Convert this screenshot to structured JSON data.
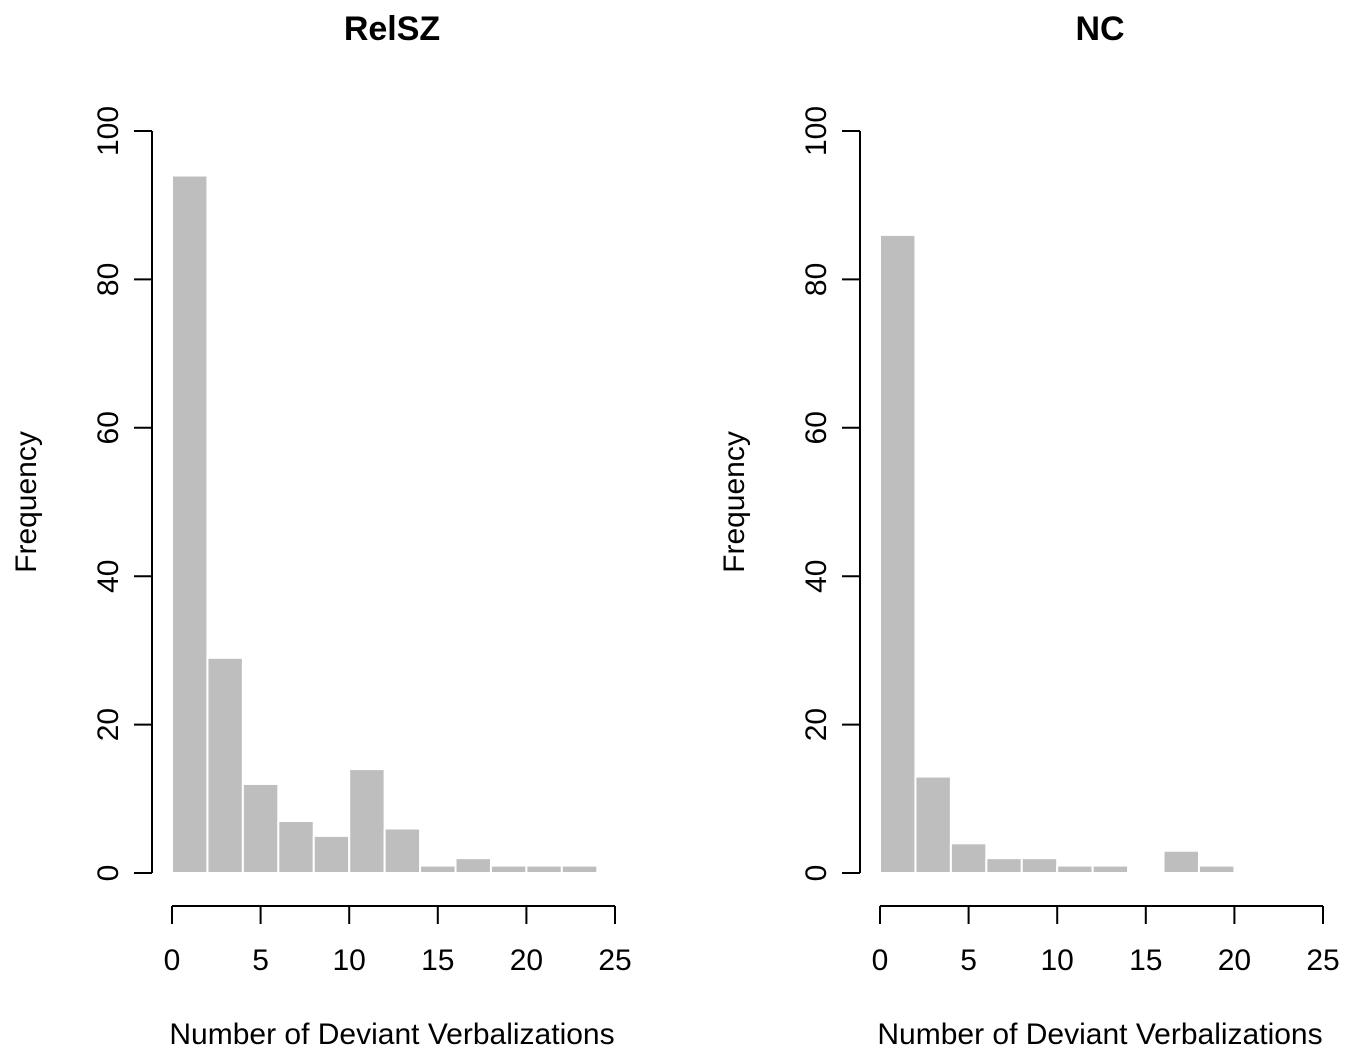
{
  "chart_data": [
    {
      "type": "bar",
      "title": "RelSZ",
      "xlabel": "Number of Deviant Verbalizations",
      "ylabel": "Frequency",
      "bin_width": 2,
      "bins_start": [
        0,
        2,
        4,
        6,
        8,
        10,
        12,
        14,
        16,
        18,
        20,
        22
      ],
      "values": [
        94,
        29,
        12,
        7,
        5,
        14,
        6,
        1,
        2,
        1,
        1,
        1
      ],
      "xlim": [
        0,
        25
      ],
      "ylim": [
        0,
        100
      ],
      "xticks": [
        "0",
        "5",
        "10",
        "15",
        "20",
        "25"
      ],
      "yticks": [
        "0",
        "20",
        "40",
        "60",
        "80",
        "100"
      ],
      "bar_color": "#bebebe",
      "grid": false
    },
    {
      "type": "bar",
      "title": "NC",
      "xlabel": "Number of Deviant Verbalizations",
      "ylabel": "Frequency",
      "bin_width": 2,
      "bins_start": [
        0,
        2,
        4,
        6,
        8,
        10,
        12,
        14,
        16,
        18
      ],
      "values": [
        86,
        13,
        4,
        2,
        2,
        1,
        1,
        0,
        3,
        1
      ],
      "xlim": [
        0,
        25
      ],
      "ylim": [
        0,
        100
      ],
      "xticks": [
        "0",
        "5",
        "10",
        "15",
        "20",
        "25"
      ],
      "yticks": [
        "0",
        "20",
        "40",
        "60",
        "80",
        "100"
      ],
      "bar_color": "#bebebe",
      "grid": false
    }
  ]
}
